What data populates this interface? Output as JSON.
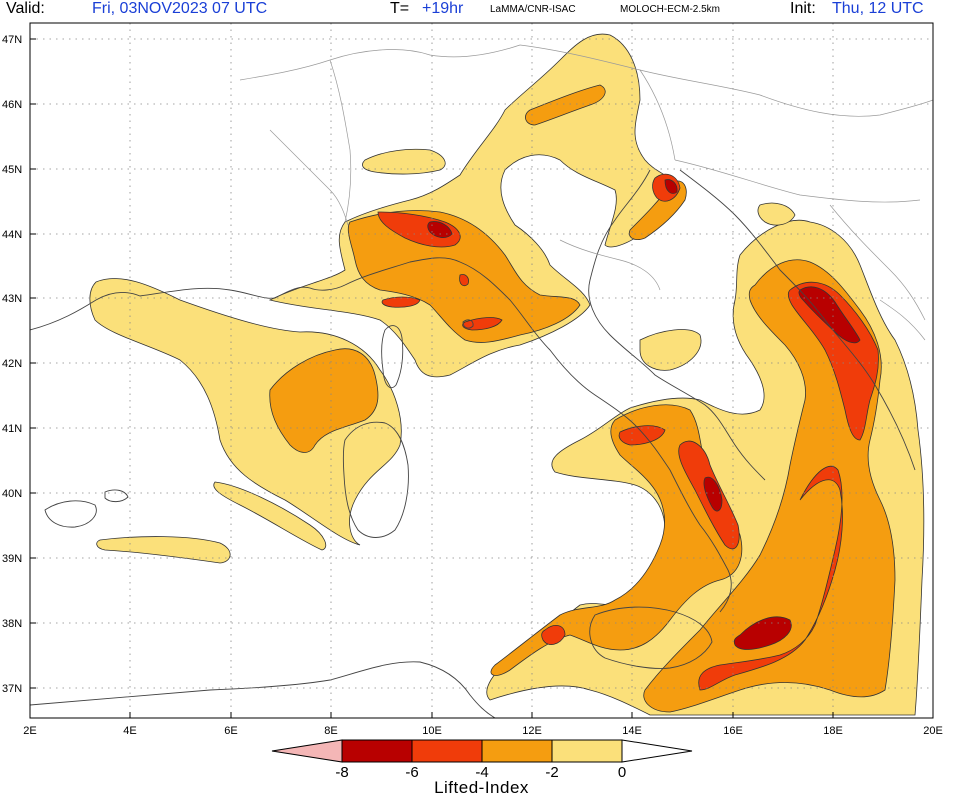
{
  "header": {
    "valid_label": "Valid:",
    "valid_value": "Fri, 03NOV2023   07 UTC",
    "timestep_label": "T=",
    "timestep_value": "+19hr",
    "producer": "LaMMA/CNR-ISAC",
    "model": "MOLOCH-ECM-2.5km",
    "init_label": "Init:",
    "init_value": "Thu, 12 UTC"
  },
  "map": {
    "lat_labels": [
      "47N",
      "46N",
      "45N",
      "44N",
      "43N",
      "42N",
      "41N",
      "40N",
      "39N",
      "38N",
      "37N"
    ],
    "lon_labels": [
      "2E",
      "4E",
      "6E",
      "8E",
      "10E",
      "12E",
      "14E",
      "16E",
      "18E",
      "20E"
    ],
    "gridlines": "dotted"
  },
  "colorbar": {
    "title": "Lifted-Index",
    "tick_labels": [
      "-8",
      "-6",
      "-4",
      "-2",
      "0"
    ],
    "bins": [
      {
        "range": "< -8",
        "color": "#f4b6b6"
      },
      {
        "range": "-8 to -6",
        "color": "#b80000"
      },
      {
        "range": "-6 to -4",
        "color": "#f03c0a"
      },
      {
        "range": "-4 to -2",
        "color": "#f59d10"
      },
      {
        "range": "-2 to 0",
        "color": "#fbe07a"
      },
      {
        "range": "> 0",
        "color": "#ffffff"
      }
    ]
  },
  "colors": {
    "level0": "#fbe07a",
    "level2": "#f59d10",
    "level4": "#f03c0a",
    "level6": "#b80000",
    "header_blue": "#1a3fd6"
  }
}
